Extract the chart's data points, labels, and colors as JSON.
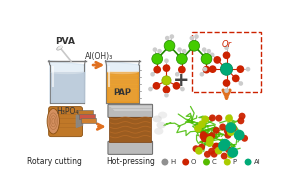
{
  "bg_color": "#ffffff",
  "figsize": [
    2.97,
    1.89
  ],
  "dpi": 100,
  "pva_label": "PVA",
  "al_oh_label": "Al(OH)₃",
  "pap_label": "PAP",
  "h3po4_label": "H₃PO₄",
  "or_label": "Or",
  "arrow_color": "#E07020",
  "rotary_label": "Rotary cutting",
  "hotpress_label": "Hot-pressing",
  "legend_labels": [
    "H",
    "O",
    "C",
    "P",
    "Al"
  ],
  "legend_colors": [
    "#909090",
    "#cc2200",
    "#55bb00",
    "#aacc00",
    "#00aa77"
  ]
}
